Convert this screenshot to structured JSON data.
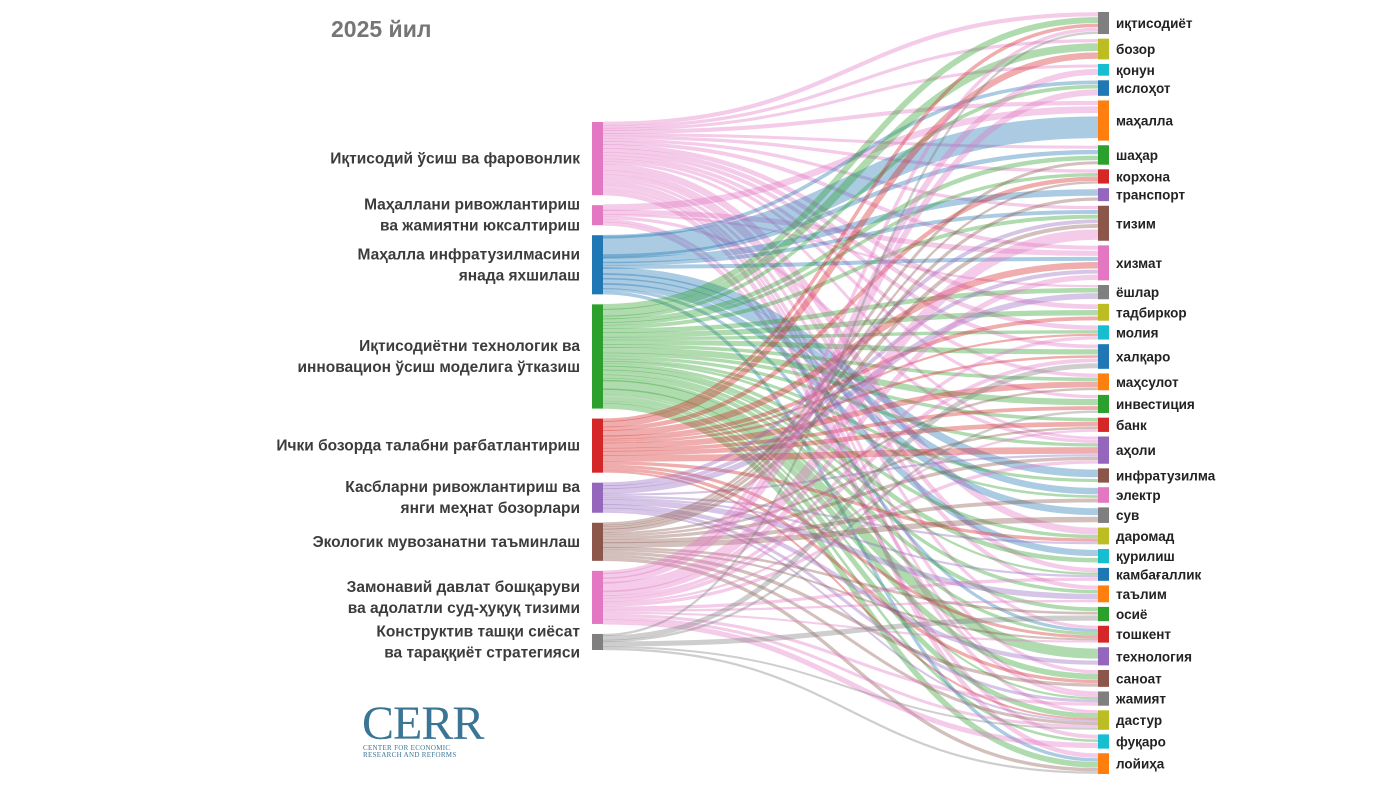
{
  "title": "2025 йил",
  "logo": {
    "main": "CERR",
    "sub_line1": "CENTER FOR ECONOMIC",
    "sub_line2": "RESEARCH AND REFORMS"
  },
  "sources": [
    {
      "lines": [
        "Иқтисодий ўсиш ва фаровонлик"
      ],
      "color": "#e377c2"
    },
    {
      "lines": [
        "Маҳаллани ривожлантириш",
        "ва жамиятни юксалтириш"
      ],
      "color": "#e377c2"
    },
    {
      "lines": [
        "Маҳалла инфратузилмасини",
        "янада яхшилаш"
      ],
      "color": "#1f77b4"
    },
    {
      "lines": [
        "Иқтисодиётни технологик ва",
        "инновацион ўсиш моделига ўтказиш"
      ],
      "color": "#2ca02c"
    },
    {
      "lines": [
        "Ички бозорда талабни рағбатлантириш"
      ],
      "color": "#d62728"
    },
    {
      "lines": [
        "Касбларни ривожлантириш ва",
        "янги меҳнат бозорлари"
      ],
      "color": "#9467bd"
    },
    {
      "lines": [
        "Экологик мувозанатни таъминлаш"
      ],
      "color": "#8c564b"
    },
    {
      "lines": [
        "Замонавий давлат бошқаруви",
        "ва адолатли суд-ҳуқуқ тизими"
      ],
      "color": "#e377c2"
    },
    {
      "lines": [
        "Конструктив ташқи сиёсат",
        "ва тараққиёт стратегияси"
      ],
      "color": "#7f7f7f"
    }
  ],
  "targets": [
    {
      "label": "иқтисодиёт",
      "color": "#7f7f7f"
    },
    {
      "label": "бозор",
      "color": "#bcbd22"
    },
    {
      "label": "қонун",
      "color": "#17becf"
    },
    {
      "label": "ислоҳот",
      "color": "#1f77b4"
    },
    {
      "label": "маҳалла",
      "color": "#ff7f0e"
    },
    {
      "label": "шаҳар",
      "color": "#2ca02c"
    },
    {
      "label": "корхона",
      "color": "#d62728"
    },
    {
      "label": "транспорт",
      "color": "#9467bd"
    },
    {
      "label": "тизим",
      "color": "#8c564b"
    },
    {
      "label": "хизмат",
      "color": "#e377c2"
    },
    {
      "label": "ёшлар",
      "color": "#7f7f7f"
    },
    {
      "label": "тадбиркор",
      "color": "#bcbd22"
    },
    {
      "label": "молия",
      "color": "#17becf"
    },
    {
      "label": "халқаро",
      "color": "#1f77b4"
    },
    {
      "label": "маҳсулот",
      "color": "#ff7f0e"
    },
    {
      "label": "инвестиция",
      "color": "#2ca02c"
    },
    {
      "label": "банк",
      "color": "#d62728"
    },
    {
      "label": "аҳоли",
      "color": "#9467bd"
    },
    {
      "label": "инфратузилма",
      "color": "#8c564b"
    },
    {
      "label": "электр",
      "color": "#e377c2"
    },
    {
      "label": "сув",
      "color": "#7f7f7f"
    },
    {
      "label": "даромад",
      "color": "#bcbd22"
    },
    {
      "label": "қурилиш",
      "color": "#17becf"
    },
    {
      "label": "камбағаллик",
      "color": "#1f77b4"
    },
    {
      "label": "таълим",
      "color": "#ff7f0e"
    },
    {
      "label": "осиё",
      "color": "#2ca02c"
    },
    {
      "label": "тошкент",
      "color": "#d62728"
    },
    {
      "label": "технология",
      "color": "#9467bd"
    },
    {
      "label": "саноат",
      "color": "#8c564b"
    },
    {
      "label": "жамият",
      "color": "#7f7f7f"
    },
    {
      "label": "дастур",
      "color": "#bcbd22"
    },
    {
      "label": "фуқаро",
      "color": "#17becf"
    },
    {
      "label": "лойиҳа",
      "color": "#ff7f0e"
    }
  ],
  "source_weights": [
    7.3,
    2,
    5.9,
    10.4,
    5.4,
    3,
    3.8,
    5.3,
    1.6
  ],
  "target_weights": [
    1.7,
    1.6,
    0.9,
    1.2,
    3.1,
    1.5,
    1.1,
    1.0,
    2.7,
    2.7,
    1.1,
    1.3,
    1.1,
    1.9,
    1.3,
    1.4,
    1.1,
    2.1,
    1.1,
    1.2,
    1.2,
    1.3,
    1.1,
    1.0,
    1.3,
    1.1,
    1.3,
    1.4,
    1.3,
    1.1,
    1.5,
    1.1,
    1.6
  ],
  "links": [
    [
      0,
      0,
      0.35
    ],
    [
      0,
      1,
      0.25
    ],
    [
      0,
      4,
      0.3
    ],
    [
      0,
      5,
      0.2
    ],
    [
      0,
      8,
      0.25
    ],
    [
      0,
      9,
      0.3
    ],
    [
      0,
      11,
      0.35
    ],
    [
      0,
      14,
      0.3
    ],
    [
      0,
      15,
      0.25
    ],
    [
      0,
      17,
      0.25
    ],
    [
      0,
      21,
      0.6
    ],
    [
      0,
      23,
      0.4
    ],
    [
      0,
      24,
      0.35
    ],
    [
      0,
      26,
      0.3
    ],
    [
      0,
      28,
      0.3
    ],
    [
      0,
      29,
      0.25
    ],
    [
      0,
      30,
      0.35
    ],
    [
      0,
      32,
      0.4
    ],
    [
      0,
      12,
      0.4
    ],
    [
      0,
      6,
      0.3
    ],
    [
      0,
      2,
      0.2
    ],
    [
      0,
      13,
      0.3
    ],
    [
      1,
      4,
      0.5
    ],
    [
      1,
      9,
      0.4
    ],
    [
      1,
      17,
      0.3
    ],
    [
      1,
      29,
      0.3
    ],
    [
      1,
      31,
      0.3
    ],
    [
      1,
      10,
      0.2
    ],
    [
      2,
      4,
      1.6
    ],
    [
      2,
      18,
      0.5
    ],
    [
      2,
      19,
      0.5
    ],
    [
      2,
      20,
      0.5
    ],
    [
      2,
      7,
      0.4
    ],
    [
      2,
      22,
      0.4
    ],
    [
      2,
      5,
      0.3
    ],
    [
      2,
      3,
      0.3
    ],
    [
      2,
      26,
      0.3
    ],
    [
      2,
      8,
      0.3
    ],
    [
      2,
      32,
      0.3
    ],
    [
      2,
      9,
      0.3
    ],
    [
      3,
      0,
      0.5
    ],
    [
      3,
      1,
      0.6
    ],
    [
      3,
      27,
      0.7
    ],
    [
      3,
      28,
      0.5
    ],
    [
      3,
      15,
      0.5
    ],
    [
      3,
      12,
      0.3
    ],
    [
      3,
      13,
      0.4
    ],
    [
      3,
      11,
      0.4
    ],
    [
      3,
      30,
      0.5
    ],
    [
      3,
      32,
      0.5
    ],
    [
      3,
      25,
      0.3
    ],
    [
      3,
      24,
      0.3
    ],
    [
      3,
      10,
      0.4
    ],
    [
      3,
      5,
      0.3
    ],
    [
      3,
      3,
      0.3
    ],
    [
      3,
      14,
      0.3
    ],
    [
      3,
      8,
      0.3
    ],
    [
      3,
      16,
      0.3
    ],
    [
      3,
      6,
      0.3
    ],
    [
      3,
      22,
      0.3
    ],
    [
      3,
      21,
      0.3
    ],
    [
      3,
      17,
      0.3
    ],
    [
      3,
      26,
      0.3
    ],
    [
      3,
      23,
      0.2
    ],
    [
      3,
      19,
      0.2
    ],
    [
      3,
      29,
      0.2
    ],
    [
      3,
      31,
      0.2
    ],
    [
      3,
      18,
      0.2
    ],
    [
      4,
      1,
      0.5
    ],
    [
      4,
      14,
      0.5
    ],
    [
      4,
      9,
      0.5
    ],
    [
      4,
      17,
      0.6
    ],
    [
      4,
      6,
      0.4
    ],
    [
      4,
      16,
      0.4
    ],
    [
      4,
      11,
      0.3
    ],
    [
      4,
      21,
      0.3
    ],
    [
      4,
      0,
      0.3
    ],
    [
      4,
      15,
      0.3
    ],
    [
      4,
      26,
      0.3
    ],
    [
      4,
      28,
      0.3
    ],
    [
      4,
      30,
      0.2
    ],
    [
      4,
      12,
      0.2
    ],
    [
      4,
      13,
      0.2
    ],
    [
      5,
      10,
      0.5
    ],
    [
      5,
      24,
      0.5
    ],
    [
      5,
      27,
      0.3
    ],
    [
      5,
      29,
      0.3
    ],
    [
      5,
      8,
      0.3
    ],
    [
      5,
      9,
      0.3
    ],
    [
      5,
      21,
      0.2
    ],
    [
      5,
      30,
      0.2
    ],
    [
      5,
      23,
      0.2
    ],
    [
      5,
      17,
      0.2
    ],
    [
      6,
      19,
      0.3
    ],
    [
      6,
      20,
      0.4
    ],
    [
      6,
      28,
      0.3
    ],
    [
      6,
      8,
      0.3
    ],
    [
      6,
      30,
      0.3
    ],
    [
      6,
      32,
      0.3
    ],
    [
      6,
      17,
      0.3
    ],
    [
      6,
      25,
      0.2
    ],
    [
      6,
      26,
      0.2
    ],
    [
      6,
      5,
      0.2
    ],
    [
      6,
      16,
      0.2
    ],
    [
      6,
      7,
      0.2
    ],
    [
      6,
      14,
      0.2
    ],
    [
      6,
      6,
      0.2
    ],
    [
      7,
      2,
      0.4
    ],
    [
      7,
      3,
      0.5
    ],
    [
      7,
      8,
      0.8
    ],
    [
      7,
      9,
      0.4
    ],
    [
      7,
      31,
      0.4
    ],
    [
      7,
      29,
      0.3
    ],
    [
      7,
      0,
      0.3
    ],
    [
      7,
      30,
      0.3
    ],
    [
      7,
      17,
      0.3
    ],
    [
      7,
      12,
      0.3
    ],
    [
      7,
      13,
      0.3
    ],
    [
      7,
      23,
      0.3
    ],
    [
      7,
      26,
      0.2
    ],
    [
      7,
      24,
      0.2
    ],
    [
      7,
      16,
      0.2
    ],
    [
      8,
      13,
      0.4
    ],
    [
      8,
      25,
      0.4
    ],
    [
      8,
      0,
      0.2
    ],
    [
      8,
      15,
      0.2
    ],
    [
      8,
      32,
      0.2
    ],
    [
      8,
      30,
      0.2
    ]
  ]
}
